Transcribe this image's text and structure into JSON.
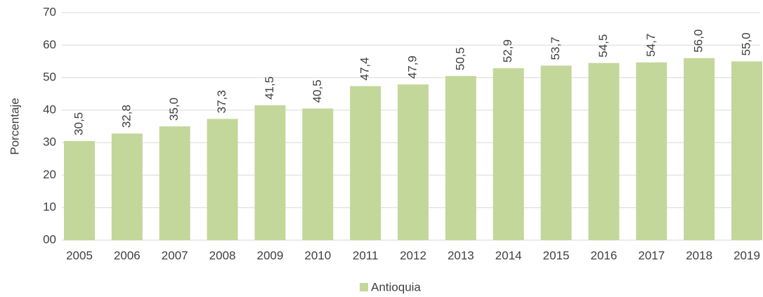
{
  "chart_data": {
    "type": "bar",
    "y_label": "Porcentaje",
    "categories": [
      "2005",
      "2006",
      "2007",
      "2008",
      "2009",
      "2010",
      "2011",
      "2012",
      "2013",
      "2014",
      "2015",
      "2016",
      "2017",
      "2018",
      "2019"
    ],
    "series": [
      {
        "name": "Antioquia",
        "color": "#c4d79b",
        "values": [
          30.5,
          32.8,
          35.0,
          37.3,
          41.5,
          40.5,
          47.4,
          47.9,
          50.5,
          52.9,
          53.7,
          54.5,
          54.7,
          56.0,
          55.0
        ],
        "value_labels": [
          "30,5",
          "32,8",
          "35,0",
          "37,3",
          "41,5",
          "40,5",
          "47,4",
          "47,9",
          "50,5",
          "52,9",
          "53,7",
          "54,5",
          "54,7",
          "56,0",
          "55,0"
        ]
      }
    ],
    "ylim": [
      0,
      70
    ],
    "yticks": [
      {
        "value": 0,
        "label": "00"
      },
      10,
      20,
      30,
      40,
      50,
      60,
      70
    ],
    "grid": true,
    "legend": "bottom"
  }
}
